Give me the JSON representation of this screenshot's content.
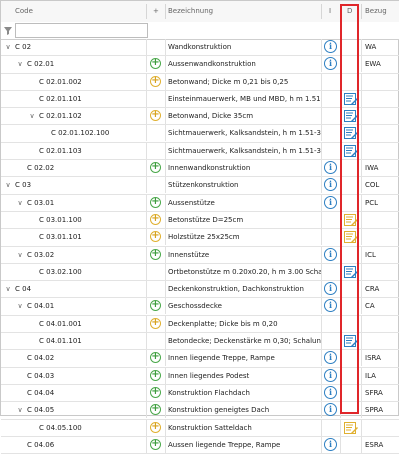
{
  "header": {
    "code": "Code",
    "plus": "+",
    "bezeichnung": "Bezeichnung",
    "info": "I",
    "d": "D",
    "bezug": "Bezug"
  },
  "filter": {
    "value": ""
  },
  "rows": [
    {
      "level": 0,
      "toggle": "expanded",
      "code": "C 02",
      "plus": "",
      "bez": "Wandkonstruktion",
      "info": true,
      "doc": "",
      "bezug": "WA"
    },
    {
      "level": 1,
      "toggle": "expanded",
      "code": "C 02.01",
      "plus": "green",
      "bez": "Aussenwandkonstruktion",
      "info": true,
      "doc": "",
      "bezug": "EWA"
    },
    {
      "level": 2,
      "toggle": "",
      "code": "C 02.01.002",
      "plus": "yellow",
      "bez": "Betonwand; Dicke m 0,21 bis 0,25",
      "info": false,
      "doc": "",
      "bezug": ""
    },
    {
      "level": 2,
      "toggle": "",
      "code": "C 02.01.101",
      "plus": "",
      "bez": "Einsteinmauerwerk, MB und MBD, h m 1.51-3.00...",
      "info": false,
      "doc": "blue",
      "bezug": ""
    },
    {
      "level": 2,
      "toggle": "expanded",
      "code": "C 02.01.102",
      "plus": "yellow",
      "bez": "Betonwand, Dicke 35cm",
      "info": false,
      "doc": "blue",
      "bezug": ""
    },
    {
      "level": 3,
      "toggle": "",
      "code": "C 02.01.102.100",
      "plus": "",
      "bez": "Sichtmauerwerk, Kalksandstein, h m 1.51-3.00,...",
      "info": false,
      "doc": "blue",
      "bezug": ""
    },
    {
      "level": 2,
      "toggle": "",
      "code": "C 02.01.103",
      "plus": "",
      "bez": "Sichtmauerwerk, Kalksandstein, h m 1.51-3.00,...",
      "info": false,
      "doc": "blue",
      "bezug": ""
    },
    {
      "level": 1,
      "toggle": "",
      "code": "C 02.02",
      "plus": "green",
      "bez": "Innenwandkonstruktion",
      "info": true,
      "doc": "",
      "bezug": "IWA"
    },
    {
      "level": 0,
      "toggle": "expanded",
      "code": "C 03",
      "plus": "",
      "bez": "Stützenkonstruktion",
      "info": true,
      "doc": "",
      "bezug": "COL"
    },
    {
      "level": 1,
      "toggle": "expanded",
      "code": "C 03.01",
      "plus": "green",
      "bez": "Aussenstütze",
      "info": true,
      "doc": "",
      "bezug": "PCL"
    },
    {
      "level": 2,
      "toggle": "",
      "code": "C 03.01.100",
      "plus": "yellow",
      "bez": "Betonstütze D=25cm",
      "info": false,
      "doc": "yellow",
      "bezug": ""
    },
    {
      "level": 2,
      "toggle": "",
      "code": "C 03.01.101",
      "plus": "yellow",
      "bez": "Holzstütze 25x25cm",
      "info": false,
      "doc": "yellow",
      "bezug": ""
    },
    {
      "level": 1,
      "toggle": "expanded",
      "code": "C 03.02",
      "plus": "green",
      "bez": "Innenstütze",
      "info": true,
      "doc": "",
      "bezug": "ICL"
    },
    {
      "level": 2,
      "toggle": "",
      "code": "C 03.02.100",
      "plus": "",
      "bez": "Ortbetonstütze m 0.20x0.20, h m 3.00 Schalu...",
      "info": false,
      "doc": "blue",
      "bezug": ""
    },
    {
      "level": 0,
      "toggle": "expanded",
      "code": "C 04",
      "plus": "",
      "bez": "Deckenkonstruktion, Dachkonstruktion",
      "info": true,
      "doc": "",
      "bezug": "CRA"
    },
    {
      "level": 1,
      "toggle": "expanded",
      "code": "C 04.01",
      "plus": "green",
      "bez": "Geschossdecke",
      "info": true,
      "doc": "",
      "bezug": "CA"
    },
    {
      "level": 2,
      "toggle": "",
      "code": "C 04.01.001",
      "plus": "yellow",
      "bez": "Deckenplatte; Dicke bis m 0,20",
      "info": false,
      "doc": "",
      "bezug": ""
    },
    {
      "level": 2,
      "toggle": "",
      "code": "C 04.01.101",
      "plus": "",
      "bez": "Betondecke; Deckenstärke m 0,30; Schalung Ty...",
      "info": false,
      "doc": "blue",
      "bezug": ""
    },
    {
      "level": 1,
      "toggle": "",
      "code": "C 04.02",
      "plus": "green",
      "bez": "Innen liegende Treppe, Rampe",
      "info": true,
      "doc": "",
      "bezug": "ISRA"
    },
    {
      "level": 1,
      "toggle": "",
      "code": "C 04.03",
      "plus": "green",
      "bez": "Innen liegendes Podest",
      "info": true,
      "doc": "",
      "bezug": "ILA"
    },
    {
      "level": 1,
      "toggle": "",
      "code": "C 04.04",
      "plus": "green",
      "bez": "Konstruktion Flachdach",
      "info": true,
      "doc": "",
      "bezug": "SFRA"
    },
    {
      "level": 1,
      "toggle": "expanded",
      "code": "C 04.05",
      "plus": "green",
      "bez": "Konstruktion geneigtes Dach",
      "info": true,
      "doc": "",
      "bezug": "SPRA"
    },
    {
      "level": 2,
      "toggle": "",
      "code": "C 04.05.100",
      "plus": "yellow",
      "bez": "Konstruktion Satteldach",
      "info": false,
      "doc": "yellow",
      "bezug": ""
    },
    {
      "level": 1,
      "toggle": "",
      "code": "C 04.06",
      "plus": "green",
      "bez": "Aussen liegende Treppe, Rampe",
      "info": true,
      "doc": "",
      "bezug": "ESRA"
    }
  ],
  "colors": {
    "green": "#4aa84a",
    "yellow": "#e0b030",
    "info": "#2d7fc2",
    "doc": "#2d7fc2",
    "highlight": "#e0262a"
  }
}
